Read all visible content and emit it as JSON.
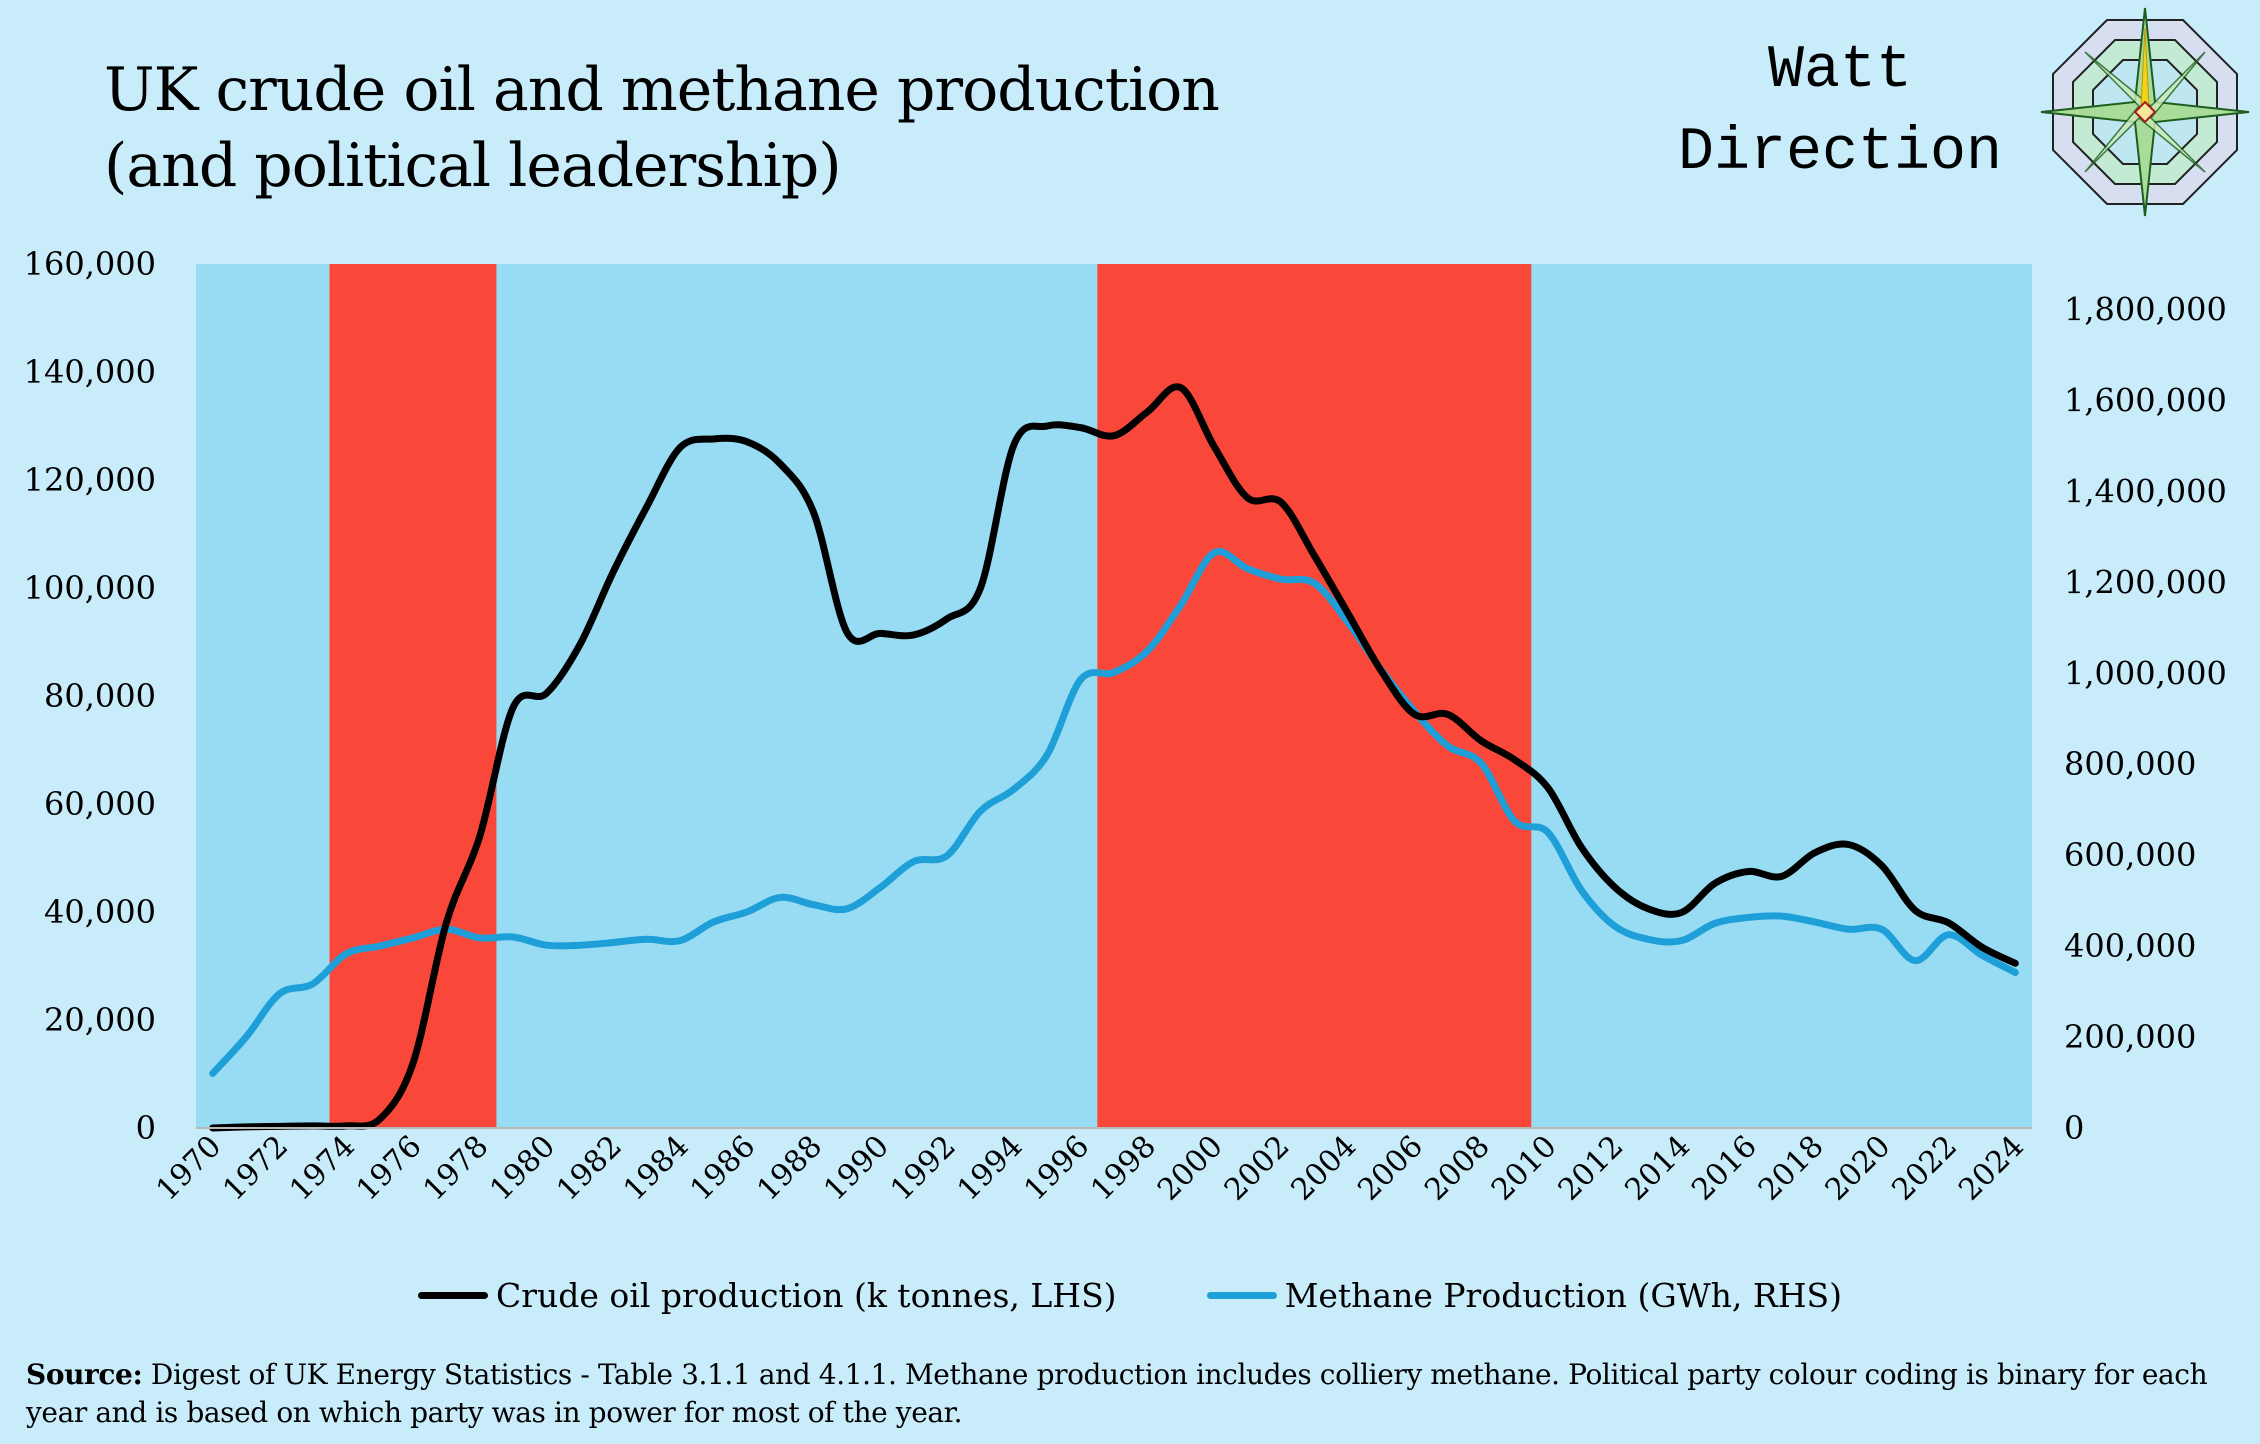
{
  "title": {
    "line1": "UK crude oil and methane production",
    "line2": "(and political leadership)"
  },
  "brand": {
    "line1": "Watt",
    "line2": "Direction"
  },
  "source": {
    "label": "Source:",
    "text": " Digest of UK Energy Statistics - Table 3.1.1 and 4.1.1. Methane production includes colliery methane. Political party colour coding is binary for each year and is based on which party was in power for most of the year."
  },
  "colors": {
    "background": "#c9ecfb",
    "conservative": "#98dcf4",
    "labour": "#f9473a",
    "oil": "#000000",
    "methane": "#1e9fd8"
  },
  "chart_data": {
    "type": "line",
    "title": "UK crude oil and methane production (and political leadership)",
    "x": [
      1970,
      1971,
      1972,
      1973,
      1974,
      1975,
      1976,
      1977,
      1978,
      1979,
      1980,
      1981,
      1982,
      1983,
      1984,
      1985,
      1986,
      1987,
      1988,
      1989,
      1990,
      1991,
      1992,
      1993,
      1994,
      1995,
      1996,
      1997,
      1998,
      1999,
      2000,
      2001,
      2002,
      2003,
      2004,
      2005,
      2006,
      2007,
      2008,
      2009,
      2010,
      2011,
      2012,
      2013,
      2014,
      2015,
      2016,
      2017,
      2018,
      2019,
      2020,
      2021,
      2022,
      2023,
      2024
    ],
    "x_tick_labels": [
      "1970",
      "1972",
      "1974",
      "1976",
      "1978",
      "1980",
      "1982",
      "1984",
      "1986",
      "1988",
      "1990",
      "1992",
      "1994",
      "1996",
      "1998",
      "2000",
      "2002",
      "2004",
      "2006",
      "2008",
      "2010",
      "2012",
      "2014",
      "2016",
      "2018",
      "2020",
      "2022",
      "2024"
    ],
    "series": [
      {
        "name": "Crude oil production (k tonnes, LHS)",
        "axis": "left",
        "values": [
          0,
          200,
          300,
          400,
          400,
          1600,
          12000,
          38000,
          54000,
          77900,
          80500,
          89500,
          103000,
          115000,
          126000,
          127600,
          127100,
          123000,
          114000,
          91800,
          91600,
          91300,
          94300,
          100000,
          126500,
          130000,
          129700,
          128200,
          132600,
          137100,
          126200,
          116700,
          115900,
          106000,
          95400,
          84700,
          76600,
          76600,
          71700,
          68200,
          63000,
          52000,
          44600,
          40600,
          39900,
          45300,
          47500,
          46600,
          51000,
          52500,
          48600,
          40300,
          38000,
          33500,
          30500
        ]
      },
      {
        "name": "Methane Production (GWh, RHS)",
        "axis": "right",
        "values": [
          120000,
          200000,
          295000,
          317000,
          383000,
          400000,
          418000,
          437000,
          418000,
          420000,
          402000,
          402000,
          408000,
          415000,
          412000,
          453000,
          475000,
          507000,
          491000,
          482000,
          529000,
          586000,
          599000,
          697000,
          745000,
          821000,
          986000,
          1002000,
          1049000,
          1150000,
          1265000,
          1230000,
          1207000,
          1198000,
          1113000,
          1008000,
          916000,
          840000,
          802000,
          675000,
          650000,
          523000,
          444000,
          415000,
          412000,
          450000,
          463000,
          466000,
          453000,
          437000,
          437000,
          368000,
          425000,
          380000,
          342000
        ]
      }
    ],
    "government": {
      "labour_periods": [
        [
          1974,
          1978
        ],
        [
          1997,
          2009
        ]
      ],
      "default": "conservative"
    },
    "y_left": {
      "ylim": [
        0,
        160000
      ],
      "ticks": [
        "0",
        "20,000",
        "40,000",
        "60,000",
        "80,000",
        "100,000",
        "120,000",
        "140,000",
        "160,000"
      ]
    },
    "y_right": {
      "ylim": [
        0,
        1900000
      ],
      "ticks": [
        "0",
        "200,000",
        "400,000",
        "600,000",
        "800,000",
        "1,000,000",
        "1,200,000",
        "1,400,000",
        "1,600,000",
        "1,800,000"
      ]
    },
    "legend": "bottom",
    "grid": false
  }
}
